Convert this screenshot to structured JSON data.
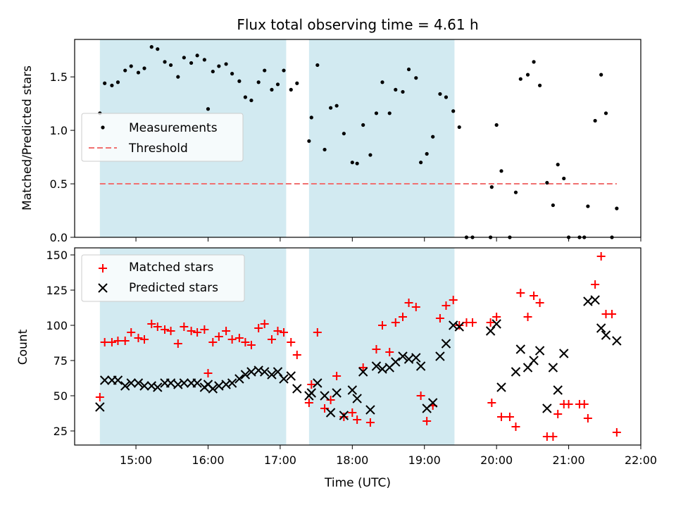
{
  "chart_data": [
    {
      "type": "scatter",
      "title": "Flux total observing time = 4.61 h",
      "xlabel": "",
      "ylabel": "Matched/Predicted stars",
      "xlim_hours": [
        14.15,
        22.0
      ],
      "ylim": [
        0,
        1.85
      ],
      "y_ticks": [
        0.0,
        0.5,
        1.0,
        1.5
      ],
      "y_tick_labels": [
        "0.0",
        "0.5",
        "1.0",
        "1.5"
      ],
      "x_tick_labels_shown": false,
      "shaded_intervals": [
        [
          "14:30",
          "17:05"
        ],
        [
          "17:24",
          "19:25"
        ]
      ],
      "shade_color": "#add8e6",
      "legend": {
        "position": "center-left",
        "entries": [
          "Measurements",
          "Threshold"
        ]
      },
      "threshold": {
        "name": "Threshold",
        "value": 0.5,
        "x_start": "14:30",
        "x_end": "21:40",
        "color": "#f07070",
        "style": "dashed"
      },
      "series": [
        {
          "name": "Measurements",
          "marker": "dot",
          "color": "#000000",
          "points": [
            [
              "14:30",
              1.16
            ],
            [
              "14:34",
              1.44
            ],
            [
              "14:40",
              1.42
            ],
            [
              "14:45",
              1.45
            ],
            [
              "14:51",
              1.56
            ],
            [
              "14:56",
              1.6
            ],
            [
              "15:02",
              1.54
            ],
            [
              "15:07",
              1.58
            ],
            [
              "15:13",
              1.78
            ],
            [
              "15:18",
              1.76
            ],
            [
              "15:24",
              1.64
            ],
            [
              "15:29",
              1.61
            ],
            [
              "15:35",
              1.5
            ],
            [
              "15:40",
              1.68
            ],
            [
              "15:46",
              1.63
            ],
            [
              "15:51",
              1.7
            ],
            [
              "15:57",
              1.66
            ],
            [
              "16:00",
              1.2
            ],
            [
              "16:04",
              1.55
            ],
            [
              "16:09",
              1.6
            ],
            [
              "16:15",
              1.62
            ],
            [
              "16:20",
              1.53
            ],
            [
              "16:26",
              1.46
            ],
            [
              "16:31",
              1.31
            ],
            [
              "16:36",
              1.28
            ],
            [
              "16:42",
              1.45
            ],
            [
              "16:47",
              1.56
            ],
            [
              "16:53",
              1.38
            ],
            [
              "16:58",
              1.43
            ],
            [
              "17:03",
              1.56
            ],
            [
              "17:09",
              1.38
            ],
            [
              "17:14",
              1.44
            ],
            [
              "17:24",
              0.9
            ],
            [
              "17:26",
              1.12
            ],
            [
              "17:31",
              1.61
            ],
            [
              "17:37",
              0.82
            ],
            [
              "17:42",
              1.21
            ],
            [
              "17:47",
              1.23
            ],
            [
              "17:53",
              0.97
            ],
            [
              "18:00",
              0.7
            ],
            [
              "18:04",
              0.69
            ],
            [
              "18:09",
              1.05
            ],
            [
              "18:15",
              0.77
            ],
            [
              "18:20",
              1.16
            ],
            [
              "18:25",
              1.45
            ],
            [
              "18:31",
              1.16
            ],
            [
              "18:36",
              1.38
            ],
            [
              "18:42",
              1.36
            ],
            [
              "18:47",
              1.57
            ],
            [
              "18:53",
              1.49
            ],
            [
              "18:57",
              0.7
            ],
            [
              "19:02",
              0.78
            ],
            [
              "19:07",
              0.94
            ],
            [
              "19:13",
              1.34
            ],
            [
              "19:18",
              1.31
            ],
            [
              "19:24",
              1.18
            ],
            [
              "19:29",
              1.03
            ],
            [
              "19:35",
              0.0
            ],
            [
              "19:40",
              0.0
            ],
            [
              "19:55",
              0.0
            ],
            [
              "19:56",
              0.47
            ],
            [
              "20:00",
              1.05
            ],
            [
              "20:04",
              0.62
            ],
            [
              "20:11",
              0.0
            ],
            [
              "20:16",
              0.42
            ],
            [
              "20:20",
              1.48
            ],
            [
              "20:26",
              1.52
            ],
            [
              "20:31",
              1.64
            ],
            [
              "20:36",
              1.42
            ],
            [
              "20:42",
              0.51
            ],
            [
              "20:47",
              0.3
            ],
            [
              "20:51",
              0.68
            ],
            [
              "20:56",
              0.55
            ],
            [
              "21:00",
              0.0
            ],
            [
              "21:09",
              0.0
            ],
            [
              "21:13",
              0.0
            ],
            [
              "21:16",
              0.29
            ],
            [
              "21:22",
              1.09
            ],
            [
              "21:27",
              1.52
            ],
            [
              "21:31",
              1.16
            ],
            [
              "21:36",
              0.0
            ],
            [
              "21:40",
              0.27
            ]
          ]
        }
      ]
    },
    {
      "type": "scatter",
      "title": "",
      "xlabel": "Time (UTC)",
      "ylabel": "Count",
      "xlim_hours": [
        14.15,
        22.0
      ],
      "ylim": [
        15,
        155
      ],
      "y_ticks": [
        25,
        50,
        75,
        100,
        125,
        150
      ],
      "y_tick_labels": [
        "25",
        "50",
        "75",
        "100",
        "125",
        "150"
      ],
      "x_ticks": [
        "15:00",
        "16:00",
        "17:00",
        "18:00",
        "19:00",
        "20:00",
        "21:00",
        "22:00"
      ],
      "shaded_intervals": [
        [
          "14:30",
          "17:05"
        ],
        [
          "17:24",
          "19:25"
        ]
      ],
      "shade_color": "#add8e6",
      "legend": {
        "position": "top-left",
        "entries": [
          "Matched stars",
          "Predicted stars"
        ]
      },
      "series": [
        {
          "name": "Matched stars",
          "marker": "plus",
          "color": "#ff0000",
          "points": [
            [
              "14:30",
              49
            ],
            [
              "14:34",
              88
            ],
            [
              "14:40",
              88
            ],
            [
              "14:45",
              89
            ],
            [
              "14:51",
              89
            ],
            [
              "14:56",
              95
            ],
            [
              "15:02",
              91
            ],
            [
              "15:07",
              90
            ],
            [
              "15:13",
              101
            ],
            [
              "15:18",
              99
            ],
            [
              "15:24",
              97
            ],
            [
              "15:29",
              96
            ],
            [
              "15:35",
              87
            ],
            [
              "15:40",
              99
            ],
            [
              "15:46",
              96
            ],
            [
              "15:51",
              95
            ],
            [
              "15:57",
              97
            ],
            [
              "16:00",
              66
            ],
            [
              "16:04",
              88
            ],
            [
              "16:09",
              92
            ],
            [
              "16:15",
              96
            ],
            [
              "16:20",
              90
            ],
            [
              "16:26",
              91
            ],
            [
              "16:31",
              88
            ],
            [
              "16:36",
              86
            ],
            [
              "16:42",
              98
            ],
            [
              "16:47",
              101
            ],
            [
              "16:53",
              90
            ],
            [
              "16:58",
              96
            ],
            [
              "17:03",
              95
            ],
            [
              "17:09",
              88
            ],
            [
              "17:14",
              79
            ],
            [
              "17:24",
              45
            ],
            [
              "17:26",
              58
            ],
            [
              "17:31",
              95
            ],
            [
              "17:37",
              41
            ],
            [
              "17:42",
              47
            ],
            [
              "17:47",
              64
            ],
            [
              "17:53",
              35
            ],
            [
              "18:00",
              38
            ],
            [
              "18:04",
              33
            ],
            [
              "18:09",
              70
            ],
            [
              "18:15",
              31
            ],
            [
              "18:20",
              83
            ],
            [
              "18:25",
              100
            ],
            [
              "18:31",
              81
            ],
            [
              "18:36",
              102
            ],
            [
              "18:42",
              106
            ],
            [
              "18:47",
              116
            ],
            [
              "18:53",
              113
            ],
            [
              "18:57",
              50
            ],
            [
              "19:02",
              32
            ],
            [
              "19:07",
              43
            ],
            [
              "19:13",
              105
            ],
            [
              "19:18",
              114
            ],
            [
              "19:24",
              118
            ],
            [
              "19:29",
              100
            ],
            [
              "19:35",
              102
            ],
            [
              "19:40",
              102
            ],
            [
              "19:55",
              102
            ],
            [
              "19:56",
              45
            ],
            [
              "20:00",
              106
            ],
            [
              "20:04",
              35
            ],
            [
              "20:11",
              35
            ],
            [
              "20:16",
              28
            ],
            [
              "20:20",
              123
            ],
            [
              "20:26",
              106
            ],
            [
              "20:31",
              121
            ],
            [
              "20:36",
              116
            ],
            [
              "20:42",
              21
            ],
            [
              "20:47",
              21
            ],
            [
              "20:51",
              37
            ],
            [
              "20:56",
              44
            ],
            [
              "21:00",
              44
            ],
            [
              "21:09",
              44
            ],
            [
              "21:13",
              44
            ],
            [
              "21:16",
              34
            ],
            [
              "21:22",
              129
            ],
            [
              "21:27",
              149
            ],
            [
              "21:31",
              108
            ],
            [
              "21:36",
              108
            ],
            [
              "21:40",
              24
            ]
          ]
        },
        {
          "name": "Predicted stars",
          "marker": "x",
          "color": "#000000",
          "points": [
            [
              "14:30",
              42
            ],
            [
              "14:34",
              61
            ],
            [
              "14:40",
              61
            ],
            [
              "14:45",
              61
            ],
            [
              "14:51",
              57
            ],
            [
              "14:56",
              59
            ],
            [
              "15:02",
              59
            ],
            [
              "15:07",
              57
            ],
            [
              "15:13",
              57
            ],
            [
              "15:18",
              56
            ],
            [
              "15:24",
              59
            ],
            [
              "15:29",
              59
            ],
            [
              "15:35",
              58
            ],
            [
              "15:40",
              59
            ],
            [
              "15:46",
              59
            ],
            [
              "15:51",
              59
            ],
            [
              "15:57",
              56
            ],
            [
              "16:00",
              58
            ],
            [
              "16:04",
              55
            ],
            [
              "16:09",
              57
            ],
            [
              "16:15",
              58
            ],
            [
              "16:20",
              59
            ],
            [
              "16:26",
              62
            ],
            [
              "16:31",
              65
            ],
            [
              "16:36",
              67
            ],
            [
              "16:42",
              68
            ],
            [
              "16:47",
              67
            ],
            [
              "16:53",
              65
            ],
            [
              "16:58",
              67
            ],
            [
              "17:03",
              62
            ],
            [
              "17:09",
              64
            ],
            [
              "17:14",
              55
            ],
            [
              "17:24",
              50
            ],
            [
              "17:26",
              52
            ],
            [
              "17:31",
              59
            ],
            [
              "17:37",
              50
            ],
            [
              "17:42",
              38
            ],
            [
              "17:47",
              52
            ],
            [
              "17:53",
              36
            ],
            [
              "18:00",
              54
            ],
            [
              "18:04",
              48
            ],
            [
              "18:09",
              67
            ],
            [
              "18:15",
              40
            ],
            [
              "18:20",
              71
            ],
            [
              "18:25",
              69
            ],
            [
              "18:31",
              70
            ],
            [
              "18:36",
              74
            ],
            [
              "18:42",
              78
            ],
            [
              "18:47",
              76
            ],
            [
              "18:53",
              77
            ],
            [
              "18:57",
              71
            ],
            [
              "19:02",
              41
            ],
            [
              "19:07",
              45
            ],
            [
              "19:13",
              78
            ],
            [
              "19:18",
              87
            ],
            [
              "19:24",
              100
            ],
            [
              "19:29",
              99
            ],
            [
              "19:55",
              96
            ],
            [
              "20:00",
              101
            ],
            [
              "20:04",
              56
            ],
            [
              "20:16",
              67
            ],
            [
              "20:20",
              83
            ],
            [
              "20:26",
              70
            ],
            [
              "20:31",
              75
            ],
            [
              "20:36",
              82
            ],
            [
              "20:42",
              41
            ],
            [
              "20:47",
              70
            ],
            [
              "20:51",
              54
            ],
            [
              "20:56",
              80
            ],
            [
              "21:16",
              117
            ],
            [
              "21:22",
              118
            ],
            [
              "21:27",
              98
            ],
            [
              "21:31",
              93
            ],
            [
              "21:40",
              89
            ]
          ]
        }
      ]
    }
  ]
}
